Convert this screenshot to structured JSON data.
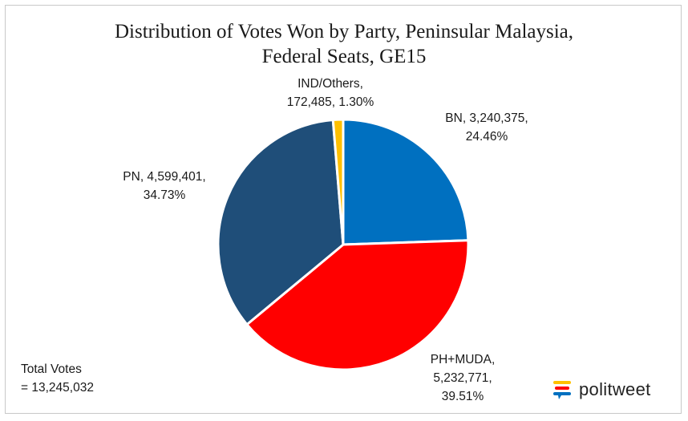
{
  "chart_data": {
    "type": "pie",
    "title_lines": [
      "Distribution of Votes Won by Party, Peninsular Malaysia,",
      "Federal Seats, GE15"
    ],
    "slices": [
      {
        "name": "BN",
        "votes": 3240375,
        "percent": 24.46,
        "color": "#0070c0",
        "label_lines": [
          "BN, 3,240,375,",
          "24.46%"
        ]
      },
      {
        "name": "PH+MUDA",
        "votes": 5232771,
        "percent": 39.51,
        "color": "#ff0000",
        "label_lines": [
          "PH+MUDA,",
          "5,232,771,",
          "39.51%"
        ]
      },
      {
        "name": "PN",
        "votes": 4599401,
        "percent": 34.73,
        "color": "#1f4e79",
        "label_lines": [
          "PN, 4,599,401,",
          "34.73%"
        ]
      },
      {
        "name": "IND/Others",
        "votes": 172485,
        "percent": 1.3,
        "color": "#ffc000",
        "label_lines": [
          "IND/Others,",
          "172,485, 1.30%"
        ]
      }
    ],
    "start_angle_deg": 0,
    "direction": "clockwise",
    "annotation_lines": [
      "Total Votes",
      "= 13,245,032"
    ]
  },
  "logo": {
    "text": "politweet",
    "colors": [
      "#ffc000",
      "#ff0000",
      "#0070c0"
    ]
  }
}
